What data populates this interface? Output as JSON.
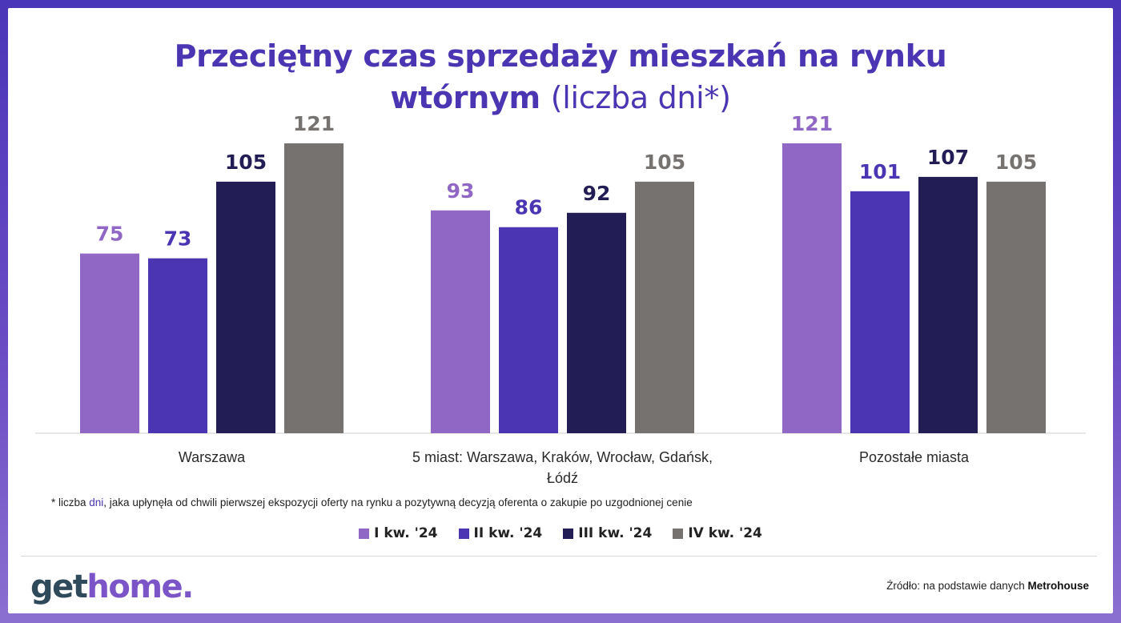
{
  "title": {
    "line1": "Przeciętny czas sprzedaży mieszkań na rynku",
    "line2_bold": "wtórnym",
    "line2_light": "(liczba dni*)"
  },
  "footnote": {
    "before": "* liczba ",
    "highlight": "dni",
    "after": ", jaka upłynęła od chwili pierwszej ekspozycji oferty na rynku a pozytywną decyzją oferenta o zakupie po uzgodnionej cenie"
  },
  "logo": {
    "part1": "get",
    "part2": "home."
  },
  "source": {
    "prefix": "Źródło: na podstawie danych ",
    "brand": "Metrohouse"
  },
  "colors": {
    "s1": "#9067c4",
    "s2": "#4b35b3",
    "s3": "#221d55",
    "s4": "#767270",
    "label_s1": "#9067c4",
    "label_s2": "#4b35b3",
    "label_s3": "#221d55",
    "label_s4": "#767270",
    "axis": "#cfcfcf"
  },
  "chart_data": {
    "type": "bar",
    "categories": [
      [
        "Warszawa"
      ],
      [
        "5 miast: Warszawa, Kraków, Wrocław, Gdańsk,",
        "Łódź"
      ],
      [
        "Pozostałe miasta"
      ]
    ],
    "series": [
      {
        "name": "I kw. '24",
        "values": [
          75,
          93,
          121
        ]
      },
      {
        "name": "II kw. '24",
        "values": [
          73,
          86,
          101
        ]
      },
      {
        "name": "III kw. '24",
        "values": [
          105,
          92,
          107
        ]
      },
      {
        "name": "IV kw. '24",
        "values": [
          121,
          105,
          105
        ]
      }
    ],
    "ylim": [
      0,
      121
    ],
    "grid": false,
    "legend_position": "bottom"
  }
}
